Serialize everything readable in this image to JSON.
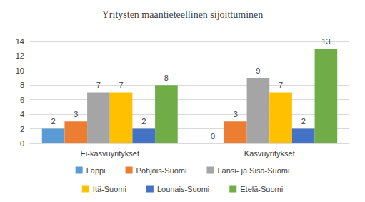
{
  "chart_data": {
    "type": "bar",
    "title": "Yritysten maantieteellinen sijoittuminen",
    "categories": [
      "Ei-kasvuyritykset",
      "Kasvuyritykset"
    ],
    "series": [
      {
        "name": "Lappi",
        "color": "#5b9bd5",
        "values": [
          2,
          0
        ]
      },
      {
        "name": "Pohjois-Suomi",
        "color": "#ed7d31",
        "values": [
          3,
          3
        ]
      },
      {
        "name": "Länsi- ja Sisä-Suomi",
        "color": "#a5a5a5",
        "values": [
          7,
          9
        ]
      },
      {
        "name": "Itä-Suomi",
        "color": "#ffc000",
        "values": [
          7,
          7
        ]
      },
      {
        "name": "Lounais-Suomi",
        "color": "#4472c4",
        "values": [
          2,
          2
        ]
      },
      {
        "name": "Etelä-Suomi",
        "color": "#70ad47",
        "values": [
          8,
          13
        ]
      }
    ],
    "ylim": [
      0,
      14
    ],
    "yticks": [
      0,
      2,
      4,
      6,
      8,
      10,
      12,
      14
    ],
    "grid": true,
    "legend": "bottom",
    "data_labels": true
  }
}
